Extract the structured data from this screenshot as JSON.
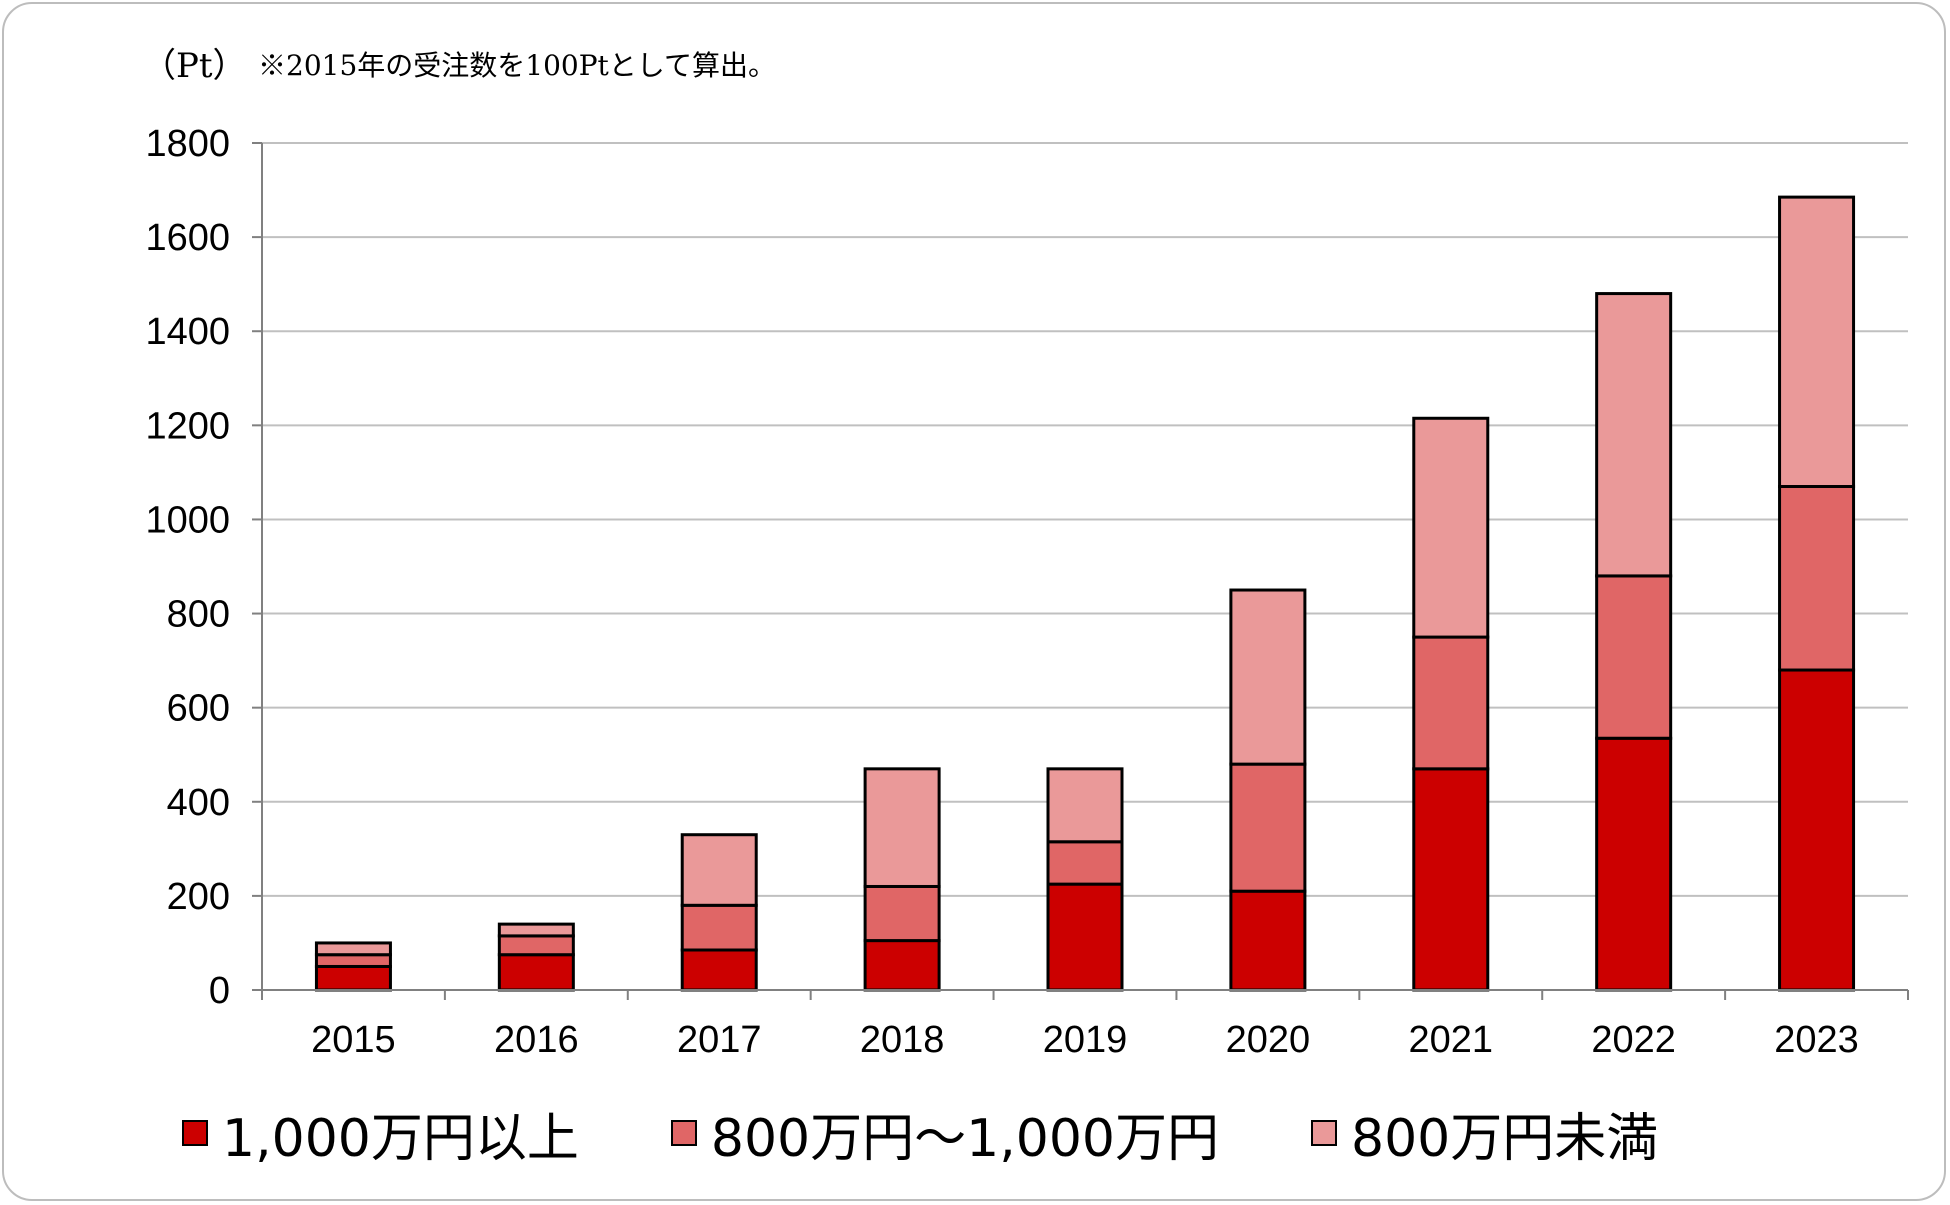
{
  "header": {
    "unit": "（Pt）",
    "note": "※2015年の受注数を100Ptとして算出。"
  },
  "colors": {
    "over_10m": "#cc0000",
    "8m_to_10m": "#e06666",
    "under_8m": "#ea9999",
    "gridline": "#c0c0c0",
    "bar_outline": "#000000"
  },
  "chart_data": {
    "type": "bar",
    "stacked": true,
    "categories": [
      "2015",
      "2016",
      "2017",
      "2018",
      "2019",
      "2020",
      "2021",
      "2022",
      "2023"
    ],
    "series": [
      {
        "name": "1,000万円以上",
        "color": "#cc0000",
        "values": [
          50,
          75,
          85,
          105,
          225,
          210,
          470,
          535,
          680
        ]
      },
      {
        "name": "800万円～1,000万円",
        "color": "#e06666",
        "values": [
          25,
          40,
          95,
          115,
          90,
          270,
          280,
          345,
          390
        ]
      },
      {
        "name": "800万円未満",
        "color": "#ea9999",
        "values": [
          25,
          25,
          150,
          250,
          155,
          370,
          465,
          600,
          615
        ]
      }
    ],
    "ylabel": "（Pt）",
    "ylim": [
      0,
      1800
    ],
    "yticks": [
      0,
      200,
      400,
      600,
      800,
      1000,
      1200,
      1400,
      1600,
      1800
    ],
    "grid": true,
    "legend_position": "bottom"
  }
}
